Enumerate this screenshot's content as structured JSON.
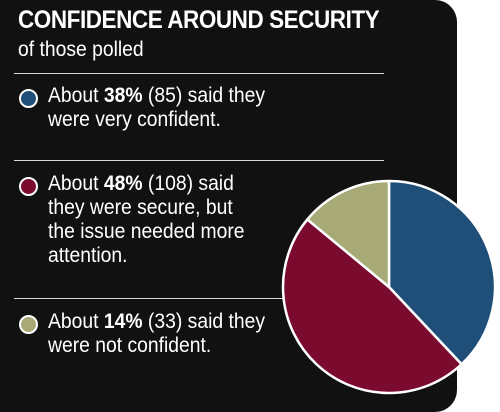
{
  "colors": {
    "very_confident": "#1f4e79",
    "secure_needs_attention": "#7a0a2e",
    "not_confident": "#a7aa76",
    "background": "#111111",
    "slice_border": "#ffffff"
  },
  "chart_data": {
    "type": "pie",
    "title": "CONFIDENCE AROUND SECURITY",
    "subtitle": "of those polled",
    "slices": [
      {
        "pct_label": "38%",
        "count_label": "(85)",
        "value": 38,
        "count": 85,
        "text": "said they were very confident.",
        "color": "#1f4e79"
      },
      {
        "pct_label": "48%",
        "count_label": "(108)",
        "value": 48,
        "count": 108,
        "text": "said they were secure, but the issue needed more attention.",
        "color": "#7a0a2e"
      },
      {
        "pct_label": "14%",
        "count_label": "(33)",
        "value": 14,
        "count": 33,
        "text": "said they were not confident.",
        "color": "#a7aa76"
      }
    ]
  },
  "legend": {
    "prefix": "About"
  }
}
